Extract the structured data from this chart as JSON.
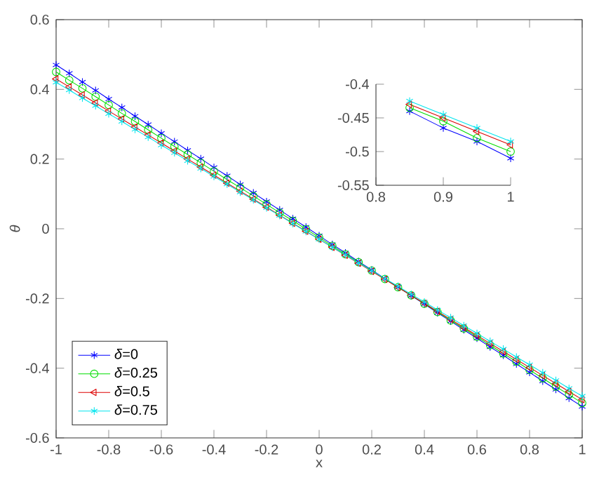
{
  "chart_data": [
    {
      "type": "line",
      "xlabel": "x",
      "ylabel": "*θ*",
      "xlim": [
        -1,
        1
      ],
      "ylim": [
        -0.6,
        0.6
      ],
      "xticks": [
        -1,
        -0.8,
        -0.6,
        -0.4,
        -0.2,
        0,
        0.2,
        0.4,
        0.6,
        0.8,
        1
      ],
      "yticks": [
        -0.6,
        -0.4,
        -0.2,
        0,
        0.2,
        0.4,
        0.6
      ],
      "legend": "bottom left",
      "line_style": "solid",
      "x": [
        -1,
        -0.95,
        -0.9,
        -0.85,
        -0.8,
        -0.75,
        -0.7,
        -0.65,
        -0.6,
        -0.55,
        -0.5,
        -0.45,
        -0.4,
        -0.35,
        -0.3,
        -0.25,
        -0.2,
        -0.15,
        -0.1,
        -0.05,
        0,
        0.05,
        0.1,
        0.15,
        0.2,
        0.25,
        0.3,
        0.35,
        0.4,
        0.45,
        0.5,
        0.55,
        0.6,
        0.65,
        0.7,
        0.75,
        0.8,
        0.85,
        0.9,
        0.95,
        1
      ],
      "series": [
        {
          "name": "*δ*=0",
          "color": "#0000ff",
          "marker": "cross",
          "values": [
            0.47,
            0.446,
            0.421,
            0.397,
            0.372,
            0.348,
            0.323,
            0.299,
            0.274,
            0.25,
            0.225,
            0.201,
            0.176,
            0.152,
            0.127,
            0.103,
            0.078,
            0.054,
            0.029,
            0.005,
            -0.02,
            -0.045,
            -0.069,
            -0.094,
            -0.118,
            -0.143,
            -0.167,
            -0.192,
            -0.216,
            -0.241,
            -0.265,
            -0.29,
            -0.314,
            -0.339,
            -0.363,
            -0.388,
            -0.412,
            -0.437,
            -0.461,
            -0.486,
            -0.51
          ]
        },
        {
          "name": "*δ*=0.25",
          "color": "#00dd00",
          "marker": "circle",
          "values": [
            0.45,
            0.426,
            0.403,
            0.379,
            0.355,
            0.331,
            0.308,
            0.284,
            0.26,
            0.236,
            0.213,
            0.189,
            0.165,
            0.141,
            0.118,
            0.094,
            0.07,
            0.046,
            0.023,
            -0.001,
            -0.025,
            -0.049,
            -0.073,
            -0.096,
            -0.12,
            -0.144,
            -0.168,
            -0.191,
            -0.215,
            -0.239,
            -0.263,
            -0.286,
            -0.31,
            -0.334,
            -0.358,
            -0.381,
            -0.405,
            -0.429,
            -0.453,
            -0.476,
            -0.5
          ]
        },
        {
          "name": "*δ*=0.5",
          "color": "#dd0000",
          "marker": "triangle",
          "values": [
            0.43,
            0.407,
            0.384,
            0.361,
            0.338,
            0.315,
            0.292,
            0.269,
            0.246,
            0.223,
            0.2,
            0.177,
            0.154,
            0.131,
            0.108,
            0.085,
            0.062,
            0.039,
            0.016,
            -0.007,
            -0.03,
            -0.053,
            -0.076,
            -0.099,
            -0.122,
            -0.145,
            -0.168,
            -0.191,
            -0.214,
            -0.237,
            -0.26,
            -0.283,
            -0.306,
            -0.329,
            -0.352,
            -0.375,
            -0.398,
            -0.421,
            -0.444,
            -0.467,
            -0.49
          ]
        },
        {
          "name": "*δ*=0.75",
          "color": "#00e5ee",
          "marker": "cross",
          "values": [
            0.42,
            0.398,
            0.375,
            0.353,
            0.33,
            0.308,
            0.285,
            0.263,
            0.24,
            0.218,
            0.195,
            0.173,
            0.15,
            0.128,
            0.105,
            0.083,
            0.06,
            0.038,
            0.015,
            -0.008,
            -0.03,
            -0.053,
            -0.075,
            -0.098,
            -0.12,
            -0.143,
            -0.165,
            -0.188,
            -0.21,
            -0.233,
            -0.255,
            -0.278,
            -0.3,
            -0.323,
            -0.345,
            -0.368,
            -0.39,
            -0.413,
            -0.435,
            -0.458,
            -0.48
          ]
        }
      ]
    },
    {
      "type": "line",
      "xlim": [
        0.8,
        1
      ],
      "ylim": [
        -0.55,
        -0.4
      ],
      "xticks": [
        0.8,
        0.9,
        1
      ],
      "yticks": [
        -0.55,
        -0.5,
        -0.45,
        -0.4
      ],
      "line_style": "solid",
      "x": [
        0.85,
        0.9,
        0.95,
        1
      ],
      "series": [
        {
          "color": "#0000ff",
          "marker": "cross",
          "values": [
            -0.44,
            -0.465,
            -0.485,
            -0.51
          ]
        },
        {
          "color": "#00dd00",
          "marker": "circle",
          "values": [
            -0.435,
            -0.455,
            -0.48,
            -0.5
          ]
        },
        {
          "color": "#dd0000",
          "marker": "triangle",
          "values": [
            -0.43,
            -0.45,
            -0.47,
            -0.49
          ]
        },
        {
          "color": "#00e5ee",
          "marker": "cross",
          "values": [
            -0.425,
            -0.445,
            -0.465,
            -0.485
          ]
        }
      ]
    }
  ]
}
